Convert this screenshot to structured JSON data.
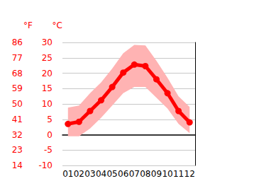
{
  "chart_data": {
    "type": "line",
    "categories": [
      "01",
      "02",
      "03",
      "04",
      "05",
      "06",
      "07",
      "08",
      "09",
      "10",
      "11",
      "12"
    ],
    "values": [
      3.5,
      4.2,
      7.7,
      11.2,
      15.5,
      20.2,
      22.8,
      22.3,
      18.0,
      13.5,
      7.7,
      4.0
    ],
    "lower": [
      -0.5,
      -0.5,
      2.0,
      5.5,
      9.5,
      13.5,
      15.5,
      15.5,
      12.0,
      8.5,
      3.5,
      0.5
    ],
    "upper": [
      8.8,
      9.5,
      13.5,
      17.0,
      21.5,
      26.5,
      29.2,
      29.0,
      24.0,
      18.5,
      12.5,
      9.0
    ],
    "color": "#ff0000",
    "range_color": "#ffb3b3",
    "marker": "circle",
    "ylabel": "°C",
    "ylim": [
      -10,
      30
    ],
    "yticks": [
      -10,
      -5,
      0,
      5,
      10,
      15,
      20,
      25,
      30
    ],
    "y2label": "°F",
    "y2lim": [
      14,
      86
    ],
    "y2ticks": [
      14,
      23,
      32,
      41,
      50,
      59,
      68,
      77,
      86
    ],
    "grid": true
  }
}
